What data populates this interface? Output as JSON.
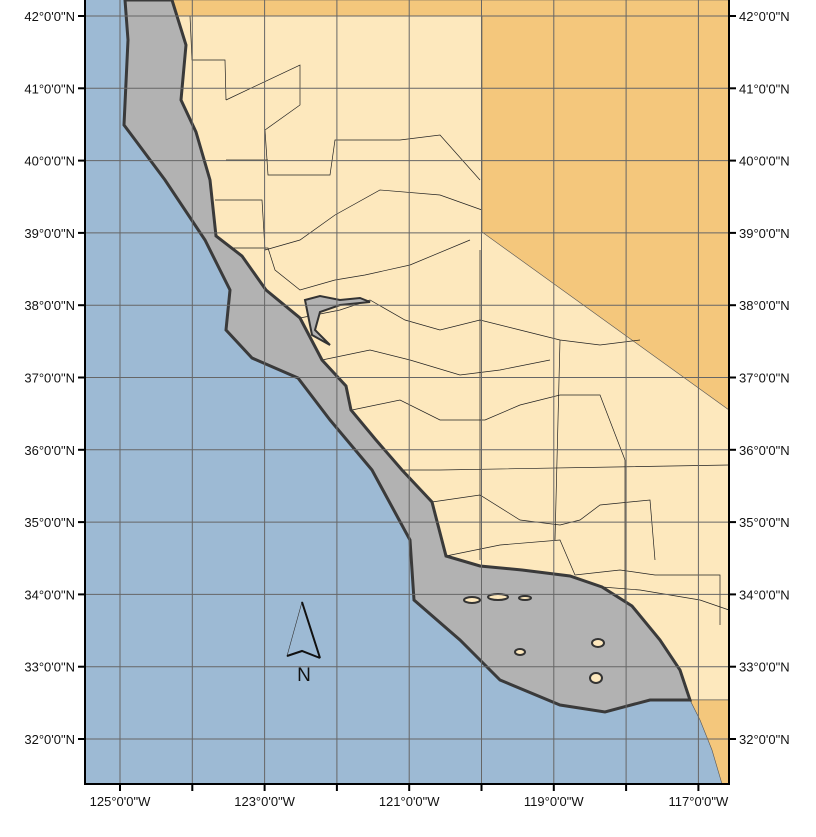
{
  "map": {
    "colors": {
      "ocean": "#9dbad4",
      "california": "#fde8bd",
      "neighbor_states": "#f4c77c",
      "buffer": "#b2b2b2",
      "buffer_outline": "#3a3a3a",
      "grid": "#666666"
    },
    "lat_labels": [
      "42°0'0\"N",
      "41°0'0\"N",
      "40°0'0\"N",
      "39°0'0\"N",
      "38°0'0\"N",
      "37°0'0\"N",
      "36°0'0\"N",
      "35°0'0\"N",
      "34°0'0\"N",
      "33°0'0\"N",
      "32°0'0\"N"
    ],
    "lon_labels": [
      "125°0'0\"W",
      "",
      "123°0'0\"W",
      "",
      "121°0'0\"W",
      "",
      "119°0'0\"W",
      "",
      "117°0'0\"W"
    ],
    "north_arrow": {
      "label": "N",
      "icon": "north-arrow-icon"
    }
  }
}
